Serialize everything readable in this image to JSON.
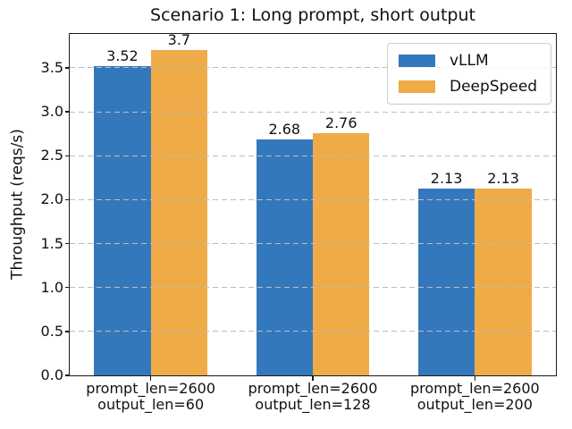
{
  "chart_data": {
    "type": "bar",
    "title": "Scenario 1: Long prompt, short output",
    "xlabel": "",
    "ylabel": "Throughput (reqs/s)",
    "categories": [
      "prompt_len=2600\noutput_len=60",
      "prompt_len=2600\noutput_len=128",
      "prompt_len=2600\noutput_len=200"
    ],
    "series": [
      {
        "name": "vLLM",
        "color": "#3478bc",
        "values": [
          3.52,
          2.68,
          2.13
        ]
      },
      {
        "name": "DeepSpeed",
        "color": "#eeab47",
        "values": [
          3.7,
          2.76,
          2.13
        ]
      }
    ],
    "bar_value_labels": [
      [
        "3.52",
        "2.68",
        "2.13"
      ],
      [
        "3.7",
        "2.76",
        "2.13"
      ]
    ],
    "ylim": [
      0,
      3.885
    ],
    "ytick_labels": [
      "0.0",
      "0.5",
      "1.0",
      "1.5",
      "2.0",
      "2.5",
      "3.0",
      "3.5"
    ],
    "bar_width_frac": 0.35,
    "grid": "horizontal-dashed",
    "legend_position": "upper right",
    "colors": {
      "grid": "#bdbdbd",
      "spine": "#1a1a1a",
      "text": "#111111",
      "background": "#ffffff"
    }
  }
}
